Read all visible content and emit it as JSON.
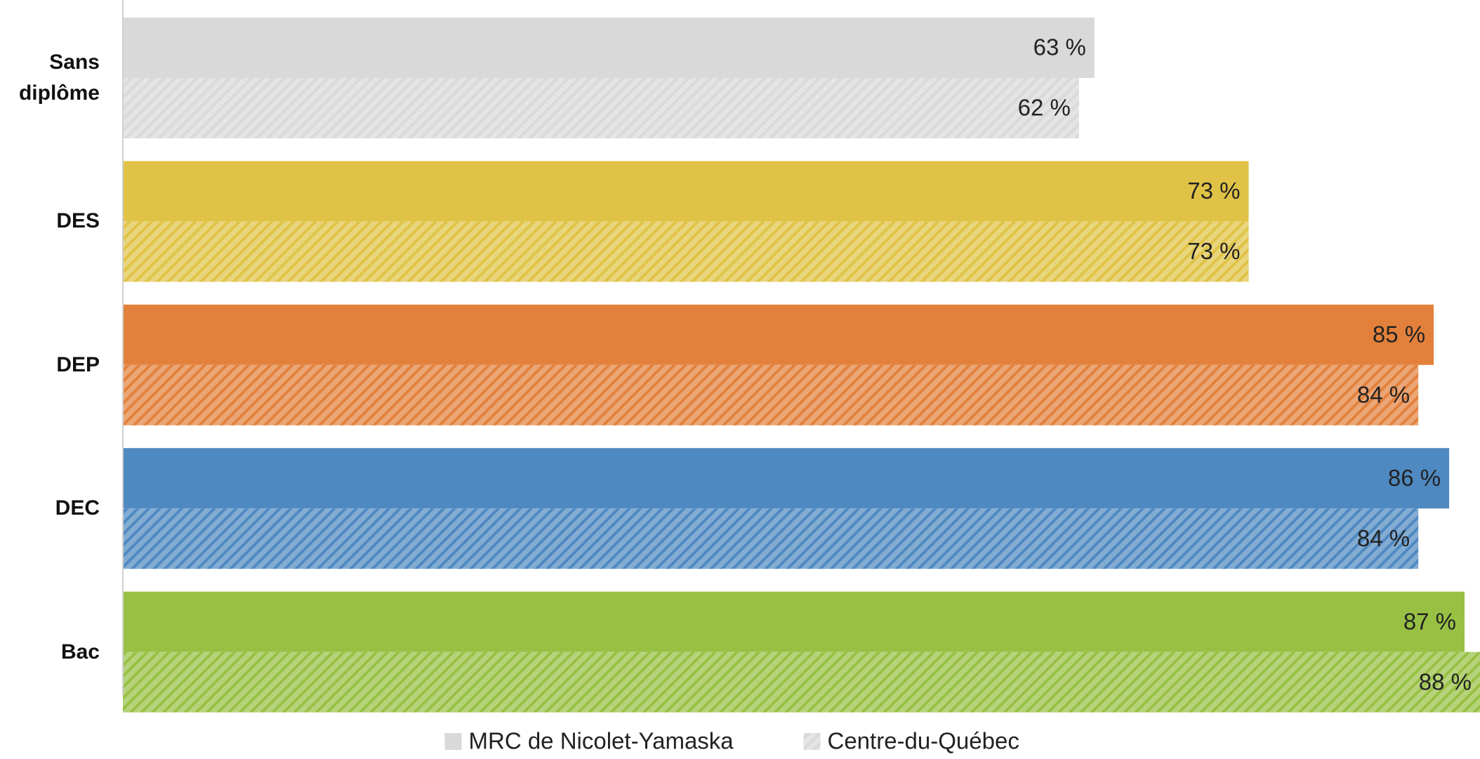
{
  "chart_data": {
    "type": "hbar",
    "categories": [
      "Sans diplôme",
      "DES",
      "DEP",
      "DEC",
      "Bac"
    ],
    "category_colors": [
      "#d9d9d9",
      "#e0c346",
      "#e3813c",
      "#4f89c1",
      "#98c144"
    ],
    "series": [
      {
        "name": "MRC de Nicolet-Yamaska",
        "color": "#d9d9d9",
        "pattern": "solid",
        "values": [
          63,
          73,
          85,
          86,
          87
        ],
        "value_labels": [
          "63 %",
          "73 %",
          "85 %",
          "86 %",
          "87 %"
        ]
      },
      {
        "name": "Centre-du-Québec",
        "color": "#d9d9d9",
        "pattern": "hatch",
        "values": [
          62,
          73,
          84,
          84,
          88
        ],
        "value_labels": [
          "62 %",
          "73 %",
          "84 %",
          "84 %",
          "88 %"
        ]
      }
    ],
    "xlim": [
      0,
      88
    ],
    "legend": "bottom"
  }
}
